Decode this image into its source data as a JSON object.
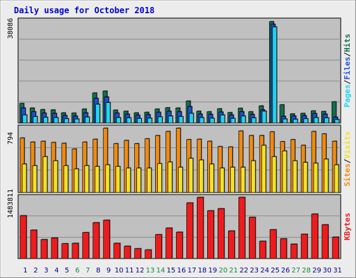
{
  "colors": {
    "background": "#ececec",
    "panel": "#c0c0c0",
    "grid": "#8c8c8c",
    "title": "#0000cc",
    "hits": "#107050",
    "files": "#1f4fd0",
    "pages": "#22d4ee",
    "visits": "#f08a10",
    "sites": "#f0e02a",
    "kbytes": "#ee1c1c",
    "weekend_day": "#118844",
    "weekday_day": "#000088"
  },
  "chart_data": {
    "type": "bar",
    "title": "Daily usage for October 2018",
    "categories": [
      "1",
      "2",
      "3",
      "4",
      "5",
      "6",
      "7",
      "8",
      "9",
      "10",
      "11",
      "12",
      "13",
      "14",
      "15",
      "16",
      "17",
      "18",
      "19",
      "20",
      "21",
      "22",
      "23",
      "24",
      "25",
      "26",
      "27",
      "28",
      "29",
      "30",
      "31"
    ],
    "weekend_days": [
      "6",
      "7",
      "13",
      "14",
      "20",
      "21",
      "27",
      "28"
    ],
    "panels": [
      {
        "id": "requests",
        "max_label": "38086",
        "max_value": 38086,
        "side_labels": [
          "Pages",
          "/",
          "Files",
          "/",
          "Hits"
        ],
        "side_colors": [
          "pages",
          "black",
          "files",
          "black",
          "hits"
        ],
        "series": [
          {
            "name": "Hits",
            "color_key": "hits",
            "values": [
              7300,
              5600,
              5000,
              4900,
              3800,
              3700,
              5200,
              11200,
              11900,
              4800,
              4400,
              3800,
              4000,
              5200,
              5700,
              5600,
              8200,
              4400,
              4200,
              5300,
              3900,
              5500,
              4200,
              6400,
              37800,
              6800,
              3400,
              3600,
              4500,
              4300,
              7900
            ]
          },
          {
            "name": "Files",
            "color_key": "files",
            "values": [
              5600,
              4200,
              3700,
              3600,
              2800,
              2600,
              3800,
              9200,
              9700,
              3700,
              3300,
              2900,
              3100,
              4000,
              4400,
              4200,
              6100,
              3300,
              3200,
              4100,
              3000,
              4200,
              3200,
              4900,
              36800,
              2500,
              2600,
              2700,
              3500,
              3300,
              2200
            ]
          },
          {
            "name": "Pages",
            "color_key": "pages",
            "values": [
              3000,
              2400,
              2100,
              2000,
              1600,
              1500,
              2200,
              7000,
              7600,
              2000,
              1900,
              1700,
              1800,
              2300,
              2600,
              2400,
              3600,
              2000,
              1800,
              3000,
              1700,
              2600,
              1900,
              4400,
              35800,
              1500,
              1400,
              1600,
              2000,
              1900,
              1300
            ]
          }
        ]
      },
      {
        "id": "visits",
        "max_label": "794",
        "max_value": 794,
        "side_labels": [
          "Sites",
          "/",
          "Visits"
        ],
        "side_colors": [
          "visits",
          "black",
          "sites"
        ],
        "series": [
          {
            "name": "Visits",
            "color_key": "visits",
            "values": [
              670,
              620,
              630,
              615,
              605,
              535,
              620,
              655,
              790,
              600,
              640,
              600,
              660,
              700,
              750,
              790,
              650,
              655,
              630,
              565,
              560,
              755,
              700,
              700,
              745,
              625,
              650,
              580,
              750,
              720,
              630
            ]
          },
          {
            "name": "Sites",
            "color_key": "sites",
            "values": [
              350,
              330,
              440,
              390,
              330,
              290,
              330,
              320,
              340,
              320,
              300,
              300,
              300,
              355,
              375,
              310,
              420,
              400,
              350,
              300,
              310,
              310,
              390,
              580,
              440,
              510,
              390,
              370,
              360,
              410,
              340
            ]
          }
        ]
      },
      {
        "id": "kbytes",
        "max_label": "1483811",
        "max_value": 1483811,
        "side_labels": [
          "KBytes"
        ],
        "side_colors": [
          "kbytes"
        ],
        "series": [
          {
            "name": "KBytes",
            "color_key": "kbytes",
            "values": [
              1040000,
              690000,
              460000,
              500000,
              360000,
              370000,
              630000,
              870000,
              930000,
              370000,
              300000,
              240000,
              210000,
              580000,
              740000,
              640000,
              1350000,
              1483811,
              1160000,
              1210000,
              670000,
              1483811,
              1000000,
              420000,
              700000,
              480000,
              350000,
              590000,
              1080000,
              820000,
              520000
            ]
          }
        ]
      }
    ]
  }
}
